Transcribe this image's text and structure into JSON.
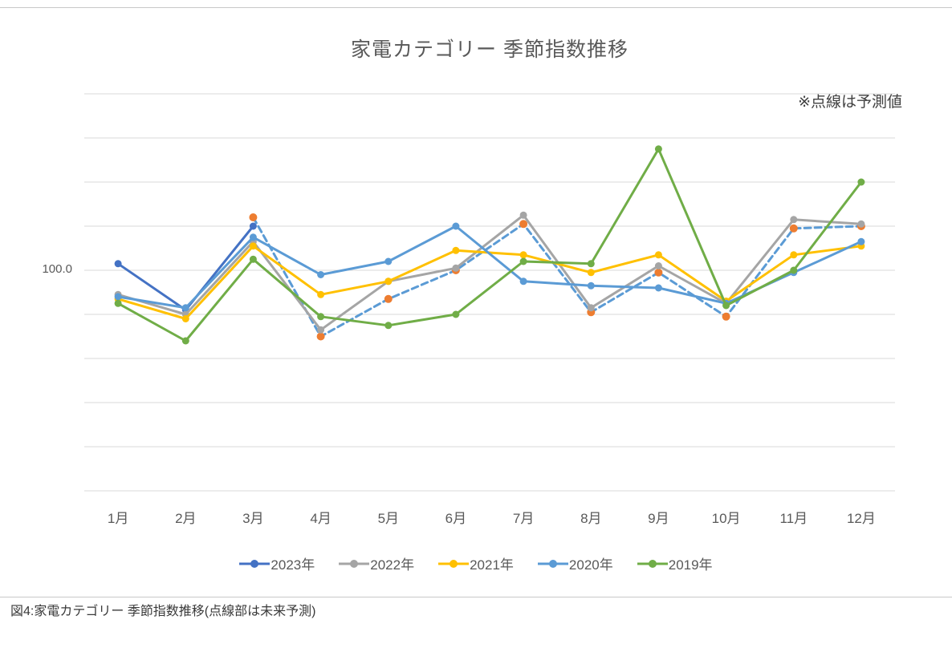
{
  "page": {
    "caption": "図4:家電カテゴリー 季節指数推移(点線部は未来予測)"
  },
  "chart_data": {
    "type": "line",
    "title": "家電カテゴリー 季節指数推移",
    "annotation": "※点線は予測値",
    "categories": [
      "1月",
      "2月",
      "3月",
      "4月",
      "5月",
      "6月",
      "7月",
      "8月",
      "9月",
      "10月",
      "11月",
      "12月"
    ],
    "y_axis": {
      "min": 0,
      "max": 180,
      "step": 20,
      "tick_label": "100.0",
      "tick_label_value": 100
    },
    "grid": "horizontal",
    "legend_position": "bottom",
    "series": [
      {
        "id": "2023-actual",
        "label": "2023年",
        "color": "#4472C4",
        "line_style": "solid",
        "values": [
          103,
          82,
          120,
          null,
          null,
          null,
          null,
          null,
          null,
          null,
          null,
          null
        ]
      },
      {
        "id": "2023-forecast",
        "label": "2023年",
        "color": "#5B9BD5",
        "marker_color": "#ED7D31",
        "line_style": "dashed",
        "values": [
          null,
          null,
          124,
          70,
          87,
          100,
          121,
          81,
          99,
          79,
          119,
          120
        ]
      },
      {
        "id": "2022",
        "label": "2022年",
        "color": "#A5A5A5",
        "line_style": "solid",
        "values": [
          89,
          80,
          113,
          73,
          95,
          101,
          125,
          83,
          102,
          85,
          123,
          121
        ]
      },
      {
        "id": "2021",
        "label": "2021年",
        "color": "#FFC000",
        "line_style": "solid",
        "values": [
          87,
          78,
          111,
          89,
          95,
          109,
          107,
          99,
          107,
          86,
          107,
          111
        ]
      },
      {
        "id": "2020",
        "label": "2020年",
        "color": "#5B9BD5",
        "line_style": "solid",
        "values": [
          88,
          83,
          115,
          98,
          104,
          120,
          95,
          93,
          92,
          85,
          99,
          113
        ]
      },
      {
        "id": "2019",
        "label": "2019年",
        "color": "#70AD47",
        "line_style": "solid",
        "values": [
          85,
          68,
          105,
          79,
          75,
          80,
          104,
          103,
          155,
          84,
          100,
          140
        ]
      }
    ],
    "legend": [
      {
        "label": "2023年",
        "color": "#4472C4"
      },
      {
        "label": "2022年",
        "color": "#A5A5A5"
      },
      {
        "label": "2021年",
        "color": "#FFC000"
      },
      {
        "label": "2020年",
        "color": "#5B9BD5"
      },
      {
        "label": "2019年",
        "color": "#70AD47"
      }
    ]
  }
}
